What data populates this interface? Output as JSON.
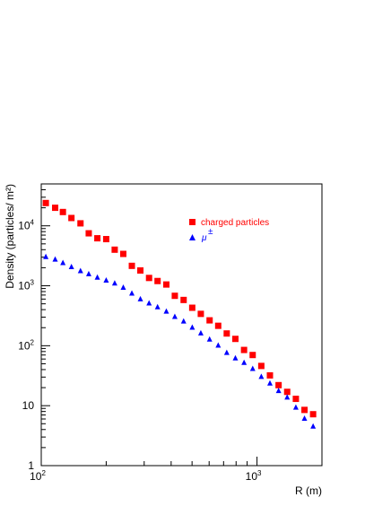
{
  "chart_data": {
    "type": "scatter",
    "title": "",
    "xlabel": "R (m)",
    "ylabel": "Density (particles/ m²)",
    "xscale": "log",
    "yscale": "log",
    "xlim": [
      100,
      2000
    ],
    "ylim": [
      1,
      50000
    ],
    "x_tick_labels": [
      {
        "value": 100,
        "base": "10",
        "exp": "2"
      },
      {
        "value": 1000,
        "base": "10",
        "exp": "3"
      }
    ],
    "y_tick_labels": [
      {
        "value": 1,
        "base": "1",
        "exp": ""
      },
      {
        "value": 10,
        "base": "10",
        "exp": ""
      },
      {
        "value": 100,
        "base": "10",
        "exp": "2"
      },
      {
        "value": 1000,
        "base": "10",
        "exp": "3"
      },
      {
        "value": 10000,
        "base": "10",
        "exp": "4"
      }
    ],
    "legend_position": "upper-right",
    "series": [
      {
        "name": "charged particles",
        "marker": "square",
        "color": "#ff0000",
        "x": [
          105,
          116,
          126,
          138,
          152,
          166,
          182,
          200,
          219,
          240,
          263,
          288,
          316,
          346,
          380,
          416,
          457,
          501,
          549,
          603,
          661,
          724,
          794,
          871,
          955,
          1047,
          1148,
          1259,
          1380,
          1514,
          1660,
          1820
        ],
        "y": [
          24000,
          20000,
          17000,
          13500,
          11000,
          7500,
          6200,
          6000,
          4000,
          3400,
          2150,
          1800,
          1350,
          1200,
          1050,
          680,
          580,
          430,
          340,
          265,
          215,
          160,
          130,
          85,
          70,
          46,
          32,
          22,
          17,
          13,
          8.5,
          7.2
        ]
      },
      {
        "name": "μ±",
        "marker": "triangle",
        "color": "#0000ff",
        "x": [
          105,
          116,
          126,
          138,
          152,
          166,
          182,
          200,
          219,
          240,
          263,
          288,
          316,
          346,
          380,
          416,
          457,
          501,
          549,
          603,
          661,
          724,
          794,
          871,
          955,
          1047,
          1148,
          1259,
          1380,
          1514,
          1660,
          1820
        ],
        "y": [
          3100,
          2800,
          2450,
          2100,
          1800,
          1600,
          1400,
          1250,
          1120,
          950,
          760,
          610,
          520,
          450,
          380,
          310,
          260,
          205,
          165,
          130,
          103,
          78,
          63,
          53,
          42,
          31,
          24,
          18,
          14,
          9.5,
          6.2,
          4.6
        ]
      }
    ]
  },
  "legend": {
    "charged_label": "charged particles",
    "mu_label": "μ",
    "mu_sup": "±"
  },
  "axes": {
    "xlabel": "R (m)",
    "ylabel": "Density (particles/ m²)"
  }
}
